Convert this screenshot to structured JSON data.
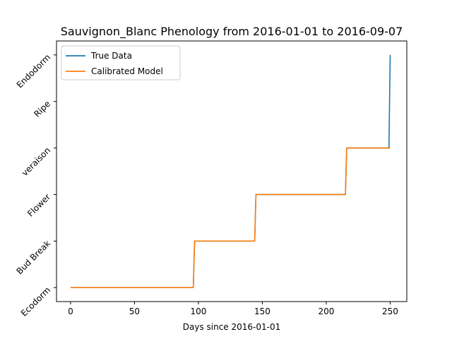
{
  "chart_data": {
    "type": "line",
    "title": "Sauvignon_Blanc Phenology from 2016-01-01 to 2016-09-07",
    "xlabel": "Days since 2016-01-01",
    "ylabel": "",
    "xlim": [
      -11,
      263
    ],
    "ylim": [
      -0.3,
      5.3
    ],
    "x_ticks": [
      0,
      50,
      100,
      150,
      200,
      250
    ],
    "y_ticks": [
      0,
      1,
      2,
      3,
      4,
      5
    ],
    "y_tick_labels": [
      "Ecodorm",
      "Bud Break",
      "Flower",
      "veraison",
      "Ripe",
      "Endodorm"
    ],
    "grid": false,
    "legend_position": "top-left",
    "series": [
      {
        "name": "True Data",
        "color": "#1f77b4",
        "x": [
          0,
          96,
          97,
          144,
          145,
          215,
          216,
          249,
          250
        ],
        "y": [
          0,
          0,
          1,
          1,
          2,
          2,
          3,
          3,
          5
        ]
      },
      {
        "name": "Calibrated Model",
        "color": "#ff7f0e",
        "x": [
          0,
          96,
          97,
          144,
          145,
          215,
          216,
          250
        ],
        "y": [
          0,
          0,
          1,
          1,
          2,
          2,
          3,
          3
        ]
      }
    ]
  }
}
